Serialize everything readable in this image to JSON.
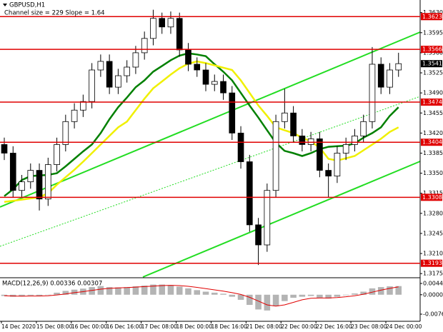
{
  "chart_data": {
    "type": "candlestick",
    "title": "GBPUSD,H1",
    "subtitle": "Channel size = 229 Slope = 1.64",
    "bull_color": "#ffffff",
    "bear_color": "#000000",
    "open": [
      1.34,
      1.3385,
      1.332,
      1.3335,
      1.3355,
      1.3305,
      1.3365,
      1.34,
      1.344,
      1.346,
      1.3475,
      1.353,
      1.3545,
      1.35,
      1.352,
      1.3535,
      1.356,
      1.3585,
      1.362,
      1.3605,
      1.362,
      1.3565,
      1.354,
      1.353,
      1.3505,
      1.351,
      1.349,
      1.342,
      1.337,
      1.326,
      1.3225,
      1.332,
      1.344,
      1.3455,
      1.3415,
      1.34,
      1.341,
      1.3355,
      1.3345,
      1.3385,
      1.34,
      1.3415,
      1.344,
      1.354,
      1.35,
      1.353
    ],
    "high": [
      1.3412,
      1.3397,
      1.3347,
      1.3367,
      1.3367,
      1.3377,
      1.3412,
      1.3452,
      1.3472,
      1.3487,
      1.3542,
      1.3557,
      1.3557,
      1.3532,
      1.3547,
      1.3572,
      1.3597,
      1.3635,
      1.363,
      1.3632,
      1.363,
      1.3577,
      1.3552,
      1.3542,
      1.3522,
      1.3522,
      1.3502,
      1.3432,
      1.3382,
      1.3272,
      1.3332,
      1.3452,
      1.3497,
      1.3467,
      1.3427,
      1.3422,
      1.3422,
      1.3367,
      1.3397,
      1.3412,
      1.3427,
      1.3452,
      1.357,
      1.3552,
      1.3542,
      1.356
    ],
    "low": [
      1.3373,
      1.3308,
      1.3308,
      1.3323,
      1.3285,
      1.3293,
      1.3353,
      1.3388,
      1.3428,
      1.3448,
      1.3463,
      1.3518,
      1.3488,
      1.3488,
      1.3508,
      1.3523,
      1.3548,
      1.3573,
      1.3593,
      1.3593,
      1.3553,
      1.3528,
      1.3518,
      1.3493,
      1.3493,
      1.3478,
      1.3408,
      1.3358,
      1.3248,
      1.319,
      1.3213,
      1.3308,
      1.3428,
      1.3403,
      1.3388,
      1.3388,
      1.3343,
      1.3308,
      1.3333,
      1.3373,
      1.3388,
      1.3403,
      1.3428,
      1.3488,
      1.3488,
      1.3518
    ],
    "close": [
      1.3385,
      1.332,
      1.3335,
      1.3355,
      1.3305,
      1.3365,
      1.34,
      1.344,
      1.346,
      1.3475,
      1.353,
      1.3545,
      1.35,
      1.352,
      1.3535,
      1.356,
      1.3585,
      1.362,
      1.3605,
      1.362,
      1.3565,
      1.354,
      1.353,
      1.3505,
      1.351,
      1.349,
      1.342,
      1.337,
      1.326,
      1.3225,
      1.332,
      1.344,
      1.3455,
      1.3415,
      1.34,
      1.341,
      1.3355,
      1.3345,
      1.3385,
      1.34,
      1.3415,
      1.344,
      1.354,
      1.35,
      1.353,
      1.3541
    ],
    "series": [
      {
        "color": "#008000",
        "values": [
          1.331,
          1.3322,
          1.3338,
          1.3345,
          1.3346,
          1.3347,
          1.335,
          1.3362,
          1.3375,
          1.3388,
          1.34,
          1.342,
          1.3444,
          1.3465,
          1.3482,
          1.35,
          1.3512,
          1.3527,
          1.3537,
          1.3547,
          1.3555,
          1.3559,
          1.3557,
          1.3554,
          1.354,
          1.3527,
          1.3512,
          1.349,
          1.3468,
          1.3447,
          1.3425,
          1.3403,
          1.3389,
          1.3385,
          1.338,
          1.3385,
          1.3392,
          1.3396,
          1.3397,
          1.3398,
          1.3402,
          1.3412,
          1.342,
          1.343,
          1.345,
          1.3465
        ]
      },
      {
        "color": "#f0f000",
        "values": [
          1.33,
          1.3302,
          1.3304,
          1.3306,
          1.3308,
          1.3315,
          1.333,
          1.3343,
          1.3356,
          1.337,
          1.3385,
          1.34,
          1.3415,
          1.343,
          1.344,
          1.346,
          1.348,
          1.3498,
          1.351,
          1.3522,
          1.3533,
          1.3541,
          1.3545,
          1.3542,
          1.3538,
          1.3534,
          1.353,
          1.3512,
          1.349,
          1.3468,
          1.345,
          1.343,
          1.3425,
          1.342,
          1.3412,
          1.3405,
          1.3395,
          1.3375,
          1.3372,
          1.3376,
          1.338,
          1.339,
          1.34,
          1.341,
          1.3422,
          1.343
        ]
      }
    ],
    "ylim": [
      1.3169,
      1.3652
    ],
    "yticks": [
      {
        "value": 1.363,
        "label": "1.3630"
      },
      1.3595,
      {
        "value": 1.356,
        "label": "1.3560"
      },
      1.3525,
      {
        "value": 1.349,
        "label": "1.3490"
      },
      1.3455,
      {
        "value": 1.342,
        "label": "1.3420"
      },
      1.3385,
      {
        "value": 1.335,
        "label": "1.3350"
      },
      1.3315,
      {
        "value": 1.328,
        "label": "1.3280"
      },
      1.3245,
      {
        "value": 1.321,
        "label": "1.3210"
      },
      1.3175
    ],
    "levels": [
      1.3623,
      1.3566,
      1.3474,
      1.3404,
      1.3308,
      1.3193
    ],
    "level_color": "#e00000",
    "last_price": 1.3541,
    "x_tick_labels": [
      "14 Dec 2020",
      "15 Dec 08:00",
      "16 Dec 00:00",
      "16 Dec 16:00",
      "17 Dec 08:00",
      "18 Dec 00:00",
      "18 Dec 16:00",
      "21 Dec 08:00",
      "22 Dec 00:00",
      "22 Dec 16:00",
      "23 Dec 08:00",
      "24 Dec 00:00"
    ],
    "macd": {
      "label": "MACD(12,26,9) 0.00336 0.00307",
      "ylim": [
        -0.01045,
        0.0064
      ],
      "yticks": [
        0.00443,
        {
          "value": 0,
          "label": "0.0000"
        },
        -0.00764
      ],
      "histogram_color": "#b4b4b4",
      "signal_color": "#e00000",
      "histogram": [
        -0.0005,
        -0.0008,
        -0.0006,
        -0.0003,
        -0.0004,
        0.0,
        0.0008,
        0.0015,
        0.002,
        0.0024,
        0.003,
        0.0034,
        0.003,
        0.0029,
        0.003,
        0.0033,
        0.0036,
        0.004,
        0.004,
        0.0038,
        0.0032,
        0.0025,
        0.0018,
        0.0012,
        0.0008,
        0.0004,
        -0.0008,
        -0.002,
        -0.004,
        -0.0058,
        -0.0062,
        -0.0045,
        -0.0025,
        -0.0012,
        -0.0008,
        -0.0005,
        -0.0012,
        -0.0015,
        -0.0008,
        -0.0002,
        0.0005,
        0.0012,
        0.0025,
        0.003,
        0.0033,
        0.0034
      ],
      "signal": [
        -0.0004,
        -0.0005,
        -0.0006,
        -0.0005,
        -0.0005,
        -0.0004,
        -0.0001,
        0.0003,
        0.0008,
        0.0012,
        0.0017,
        0.0022,
        0.0025,
        0.0027,
        0.0028,
        0.003,
        0.0032,
        0.0034,
        0.0036,
        0.0037,
        0.0036,
        0.0033,
        0.0029,
        0.0024,
        0.0019,
        0.0014,
        0.0008,
        0.0001,
        -0.001,
        -0.0025,
        -0.004,
        -0.0045,
        -0.004,
        -0.003,
        -0.002,
        -0.0014,
        -0.0013,
        -0.0013,
        -0.0011,
        -0.0008,
        -0.0004,
        0.0002,
        0.001,
        0.0018,
        0.0025,
        0.0031
      ]
    }
  }
}
